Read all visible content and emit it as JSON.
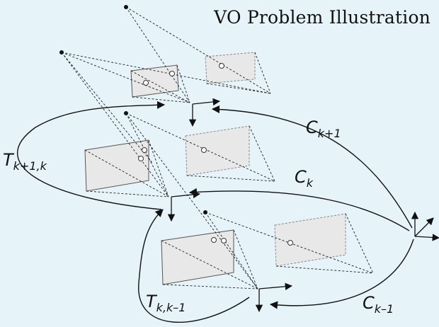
{
  "title": "VO Problem Illustration",
  "labels": {
    "c_k_plus_1": {
      "main": "C",
      "sub": "k+1"
    },
    "c_k": {
      "main": "C",
      "sub": "k"
    },
    "c_k_minus_1": {
      "main": "C",
      "sub": "k–1"
    },
    "t_k_plus_1_k": {
      "main": "T",
      "sub": "k+1,k"
    },
    "t_k_k_minus_1": {
      "main": "T",
      "sub": "k,k–1"
    }
  },
  "colors": {
    "background": "#e6f4fa",
    "image_plane": "#e8e8e8",
    "stroke": "#111111"
  }
}
